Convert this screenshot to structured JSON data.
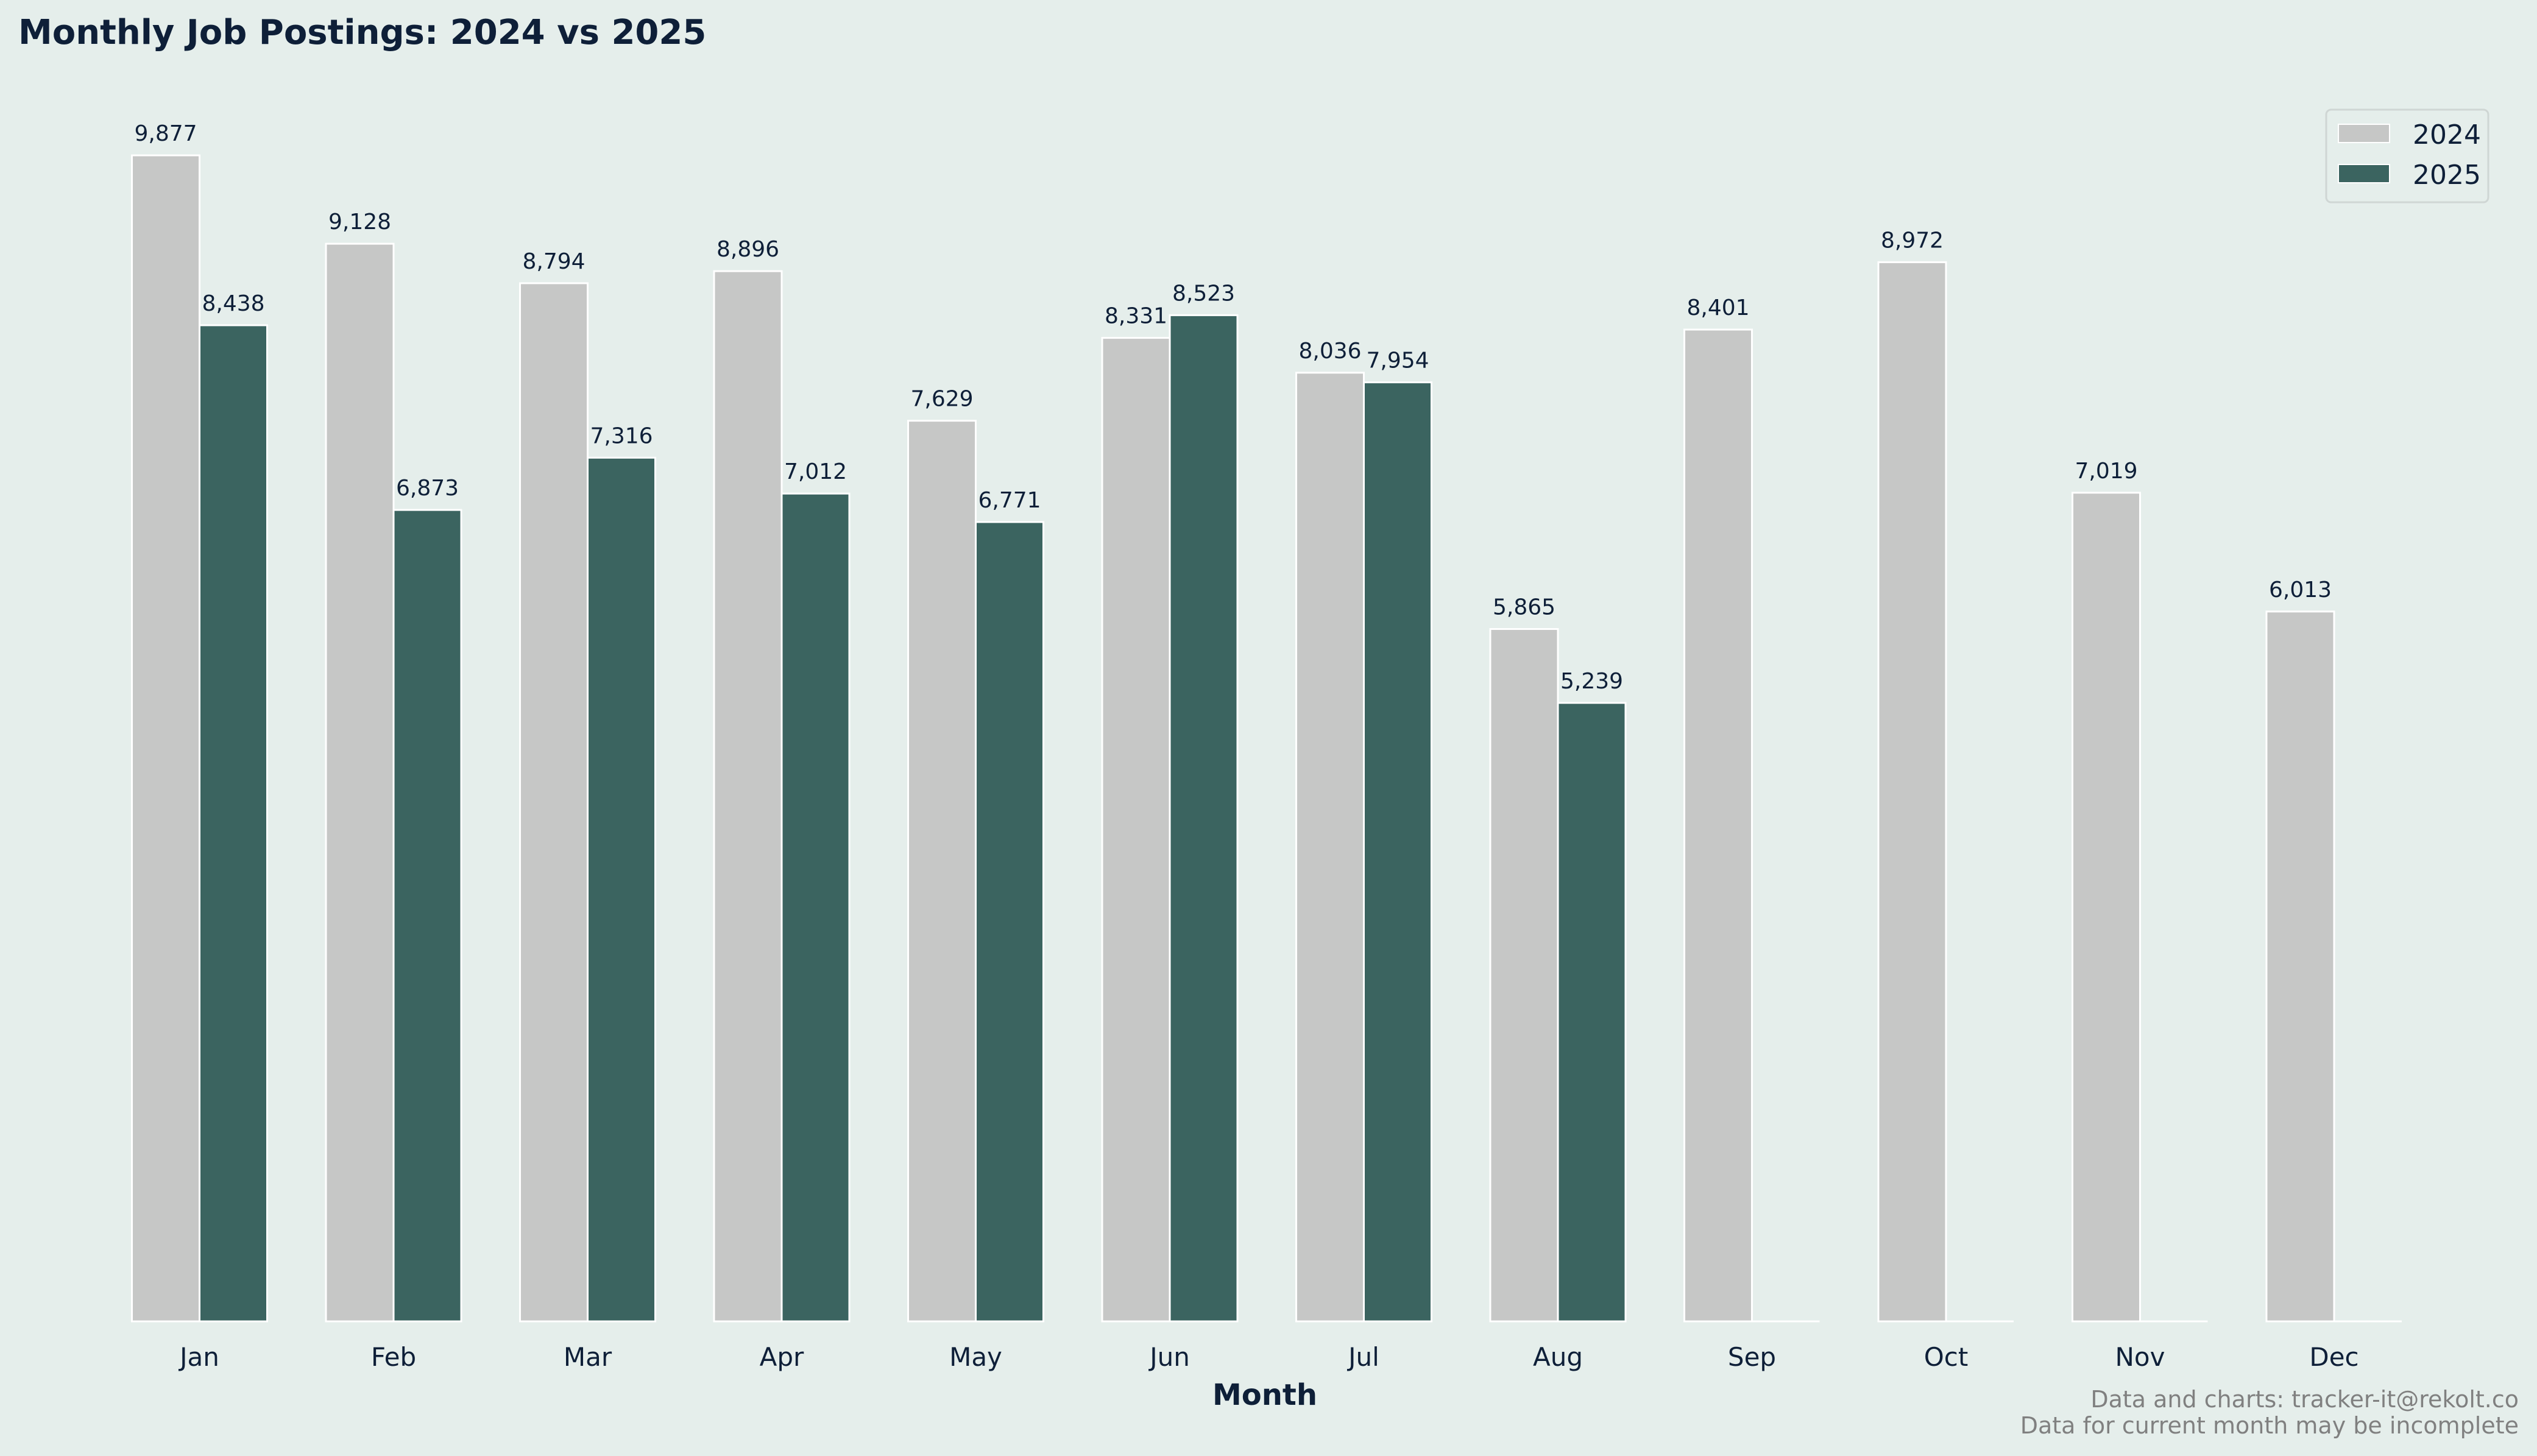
{
  "chart_data": {
    "type": "bar",
    "title": "Monthly Job Postings: 2024 vs 2025",
    "xlabel": "Month",
    "ylabel": "",
    "ylim": [
      0,
      10400
    ],
    "grid": false,
    "legend_position": "top-right",
    "categories": [
      "Jan",
      "Feb",
      "Mar",
      "Apr",
      "May",
      "Jun",
      "Jul",
      "Aug",
      "Sep",
      "Oct",
      "Nov",
      "Dec"
    ],
    "series": [
      {
        "name": "2024",
        "color": "#c6c7c6",
        "values": [
          9877,
          9128,
          8794,
          8896,
          7629,
          8331,
          8036,
          5865,
          8401,
          8972,
          7019,
          6013
        ],
        "labels": [
          "9,877",
          "9,128",
          "8,794",
          "8,896",
          "7,629",
          "8,331",
          "8,036",
          "5,865",
          "8,401",
          "8,972",
          "7,019",
          "6,013"
        ]
      },
      {
        "name": "2025",
        "color": "#3b6460",
        "values": [
          8438,
          6873,
          7316,
          7012,
          6771,
          8523,
          7954,
          5239,
          0,
          0,
          0,
          0
        ],
        "labels": [
          "8,438",
          "6,873",
          "7,316",
          "7,012",
          "6,771",
          "8,523",
          "7,954",
          "5,239",
          "",
          "",
          "",
          ""
        ]
      }
    ],
    "footer": [
      "Data and charts: tracker-it@rekolt.co",
      "Data for current month may be incomplete"
    ]
  },
  "colors": {
    "background": "#e5eeeb",
    "text": "#0e1f38",
    "footer": "#808080",
    "bar_edge": "#ffffff"
  }
}
